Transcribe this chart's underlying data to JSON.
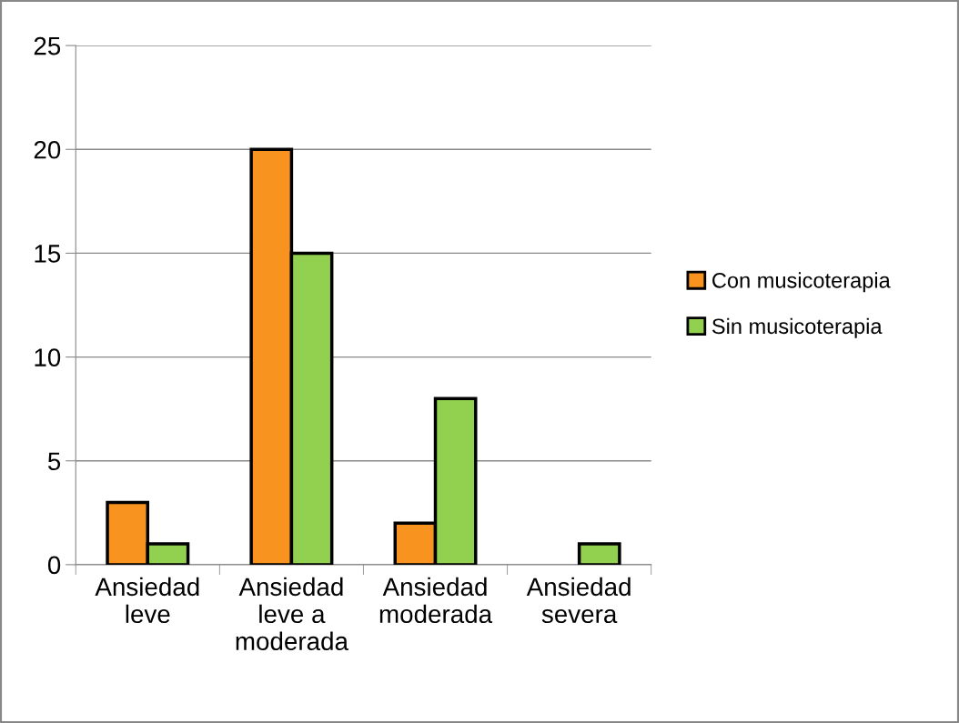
{
  "chart_data": {
    "type": "bar",
    "categories": [
      "Ansiedad\nleve",
      "Ansiedad\nleve a\nmoderada",
      "Ansiedad\nmoderada",
      "Ansiedad\nsevera"
    ],
    "series": [
      {
        "name": "Con musicoterapia",
        "color": "#f7931e",
        "values": [
          3,
          20,
          2,
          0
        ]
      },
      {
        "name": "Sin musicoterapia",
        "color": "#92d050",
        "values": [
          1,
          15,
          8,
          1
        ]
      }
    ],
    "ylim": [
      0,
      25
    ],
    "yticks": [
      0,
      5,
      10,
      15,
      20,
      25
    ],
    "grid": "y",
    "legend": "right"
  }
}
